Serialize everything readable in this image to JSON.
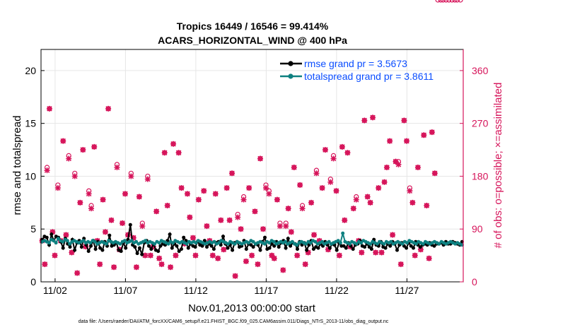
{
  "colors": {
    "rmse": "#000000",
    "spread": "#0e8080",
    "obs": "#d6145a",
    "legend_text": "#0a4dff",
    "grid": "#e6e6e6"
  },
  "chart_data": {
    "type": "line",
    "title_line1": "Tropics 16449 / 16546 = 99.414%",
    "title_line2": "ACARS_HORIZONTAL_WIND @ 400 hPa",
    "xlabel": "Nov.01,2013 00:00:00 start",
    "ylabel_left": "rmse and totalspread",
    "ylabel_right": "# of obs: o=possible; ×=assimilated",
    "footnote": "data file: /Users/raeder/DAI/ATM_forcXX/CAM6_setup/f.e21.FHIST_BGC.f09_025.CAM6assim.011/Diags_NTrS_2013-11/obs_diag_output.nc",
    "xlim": [
      0.5,
      30.5
    ],
    "x_ticks": [
      1.5,
      6.5,
      11.5,
      16.5,
      21.5,
      26.5
    ],
    "x_tick_labels": [
      "11/02",
      "11/07",
      "11/12",
      "11/17",
      "11/22",
      "11/27"
    ],
    "ylim_left": [
      0,
      22
    ],
    "y_ticks_left": [
      0,
      5,
      10,
      15,
      20
    ],
    "ylim_right": [
      0,
      396
    ],
    "y_ticks_right": [
      0,
      90,
      180,
      270,
      360
    ],
    "legend": [
      {
        "name": "rmse grand pr = 3.5673",
        "series": "rmse"
      },
      {
        "name": "totalspread grand pr = 3.8611",
        "series": "spread"
      }
    ],
    "series": [
      {
        "name": "rmse",
        "values": [
          4.0,
          4.3,
          4.2,
          3.5,
          4.5,
          3.9,
          4.3,
          4.2,
          3.8,
          3.2,
          4.1,
          3.6,
          3.3,
          4.0,
          3.0,
          3.7,
          3.9,
          3.3,
          4.1,
          3.5,
          2.9,
          3.4,
          3.9,
          3.1,
          3.8,
          3.2,
          3.0,
          3.8,
          3.4,
          4.4,
          3.4,
          3.5,
          3.7,
          3.0,
          2.9,
          3.7,
          3.2,
          4.0,
          5.4,
          3.5,
          3.3,
          2.7,
          3.2,
          2.6,
          3.7,
          3.9,
          3.4,
          3.1,
          3.6,
          3.0,
          2.9,
          3.4,
          3.6,
          3.5,
          3.9,
          4.5,
          3.2,
          3.6,
          3.4,
          2.9,
          3.1,
          4.2,
          3.9,
          3.2,
          3.6,
          3.4,
          3.3,
          3.8,
          3.5,
          3.4,
          3.9,
          3.3,
          3.6,
          3.4,
          3.1,
          3.7,
          3.8,
          3.5,
          4.3,
          3.6,
          3.2,
          3.5,
          3.0,
          3.7,
          3.8,
          3.3,
          3.4,
          3.9,
          3.1,
          3.6,
          3.5,
          3.3,
          3.6,
          3.5,
          3.0,
          3.8,
          4.2,
          3.1,
          3.2,
          3.6,
          3.4,
          3.8,
          3.3,
          3.7,
          3.9,
          3.2,
          4.1,
          3.4,
          3.7,
          3.6,
          3.1,
          3.8,
          3.5,
          3.7,
          3.0,
          3.5,
          3.9,
          3.1,
          3.3,
          3.2,
          3.6,
          3.4,
          3.8,
          3.5,
          3.2,
          3.6,
          3.5,
          3.0,
          3.7,
          3.4,
          3.4,
          3.2,
          3.7,
          3.4,
          3.1,
          3.5,
          3.6,
          3.9,
          3.4,
          3.3,
          3.6,
          3.3,
          3.1,
          4.0,
          3.5,
          3.4,
          3.8,
          3.3,
          3.2,
          3.6,
          3.4,
          3.8,
          3.6,
          3.0,
          3.5,
          3.7,
          3.4,
          3.2,
          3.7,
          3.4,
          3.2,
          3.8,
          3.5,
          3.3,
          3.5,
          3.6,
          3.5,
          3.7,
          3.5,
          3.4,
          3.6,
          3.6,
          3.7,
          3.5,
          3.8,
          3.6,
          3.6,
          3.8,
          3.7,
          3.6,
          3.5,
          3.8
        ],
        "color_key": "rmse"
      },
      {
        "name": "totalspread",
        "values": [
          3.8,
          3.9,
          3.8,
          3.7,
          4.0,
          3.9,
          3.7,
          4.1,
          3.9,
          3.8,
          4.0,
          3.9,
          3.6,
          3.8,
          3.9,
          3.8,
          3.7,
          3.8,
          3.9,
          3.7,
          3.8,
          3.7,
          3.9,
          3.8,
          3.6,
          3.7,
          3.8,
          3.7,
          3.6,
          3.9,
          3.8,
          3.7,
          3.8,
          3.7,
          3.6,
          3.8,
          3.9,
          3.7,
          3.8,
          3.9,
          3.7,
          3.8,
          3.6,
          3.7,
          3.8,
          3.9,
          3.7,
          3.8,
          3.7,
          3.6,
          3.8,
          3.7,
          3.9,
          3.8,
          3.7,
          3.6,
          3.8,
          3.7,
          3.9,
          3.8,
          3.7,
          3.8,
          3.7,
          3.6,
          3.8,
          3.7,
          3.8,
          3.7,
          3.9,
          3.8,
          3.7,
          3.6,
          3.7,
          3.8,
          3.7,
          3.8,
          3.6,
          3.7,
          3.9,
          3.8,
          3.7,
          3.6,
          3.8,
          3.7,
          3.6,
          3.8,
          3.7,
          3.6,
          3.7,
          3.8,
          3.7,
          3.9,
          3.8,
          3.6,
          3.7,
          3.8,
          3.7,
          3.6,
          3.8,
          3.7,
          3.9,
          3.8,
          3.6,
          3.7,
          3.8,
          3.7,
          3.8,
          3.6,
          3.7,
          3.8,
          3.6,
          3.5,
          3.7,
          3.8,
          3.7,
          3.6,
          3.8,
          3.7,
          3.9,
          3.8,
          3.6,
          3.7,
          3.8,
          3.6,
          3.7,
          3.8,
          3.6,
          3.7,
          3.8,
          3.9,
          3.7,
          4.6,
          3.8,
          3.7,
          3.6,
          3.8,
          3.7,
          3.6,
          3.8,
          3.7,
          3.9,
          3.8,
          3.7,
          3.6,
          3.8,
          3.7,
          3.6,
          3.8,
          3.7,
          3.6,
          3.8,
          3.7,
          3.8,
          3.6,
          3.7,
          3.8,
          3.7,
          3.6,
          3.8,
          3.7,
          3.9,
          3.8,
          3.7,
          3.6,
          3.8,
          3.7,
          3.6,
          3.8,
          3.7,
          3.6,
          3.7,
          3.8,
          3.7,
          3.6,
          3.8,
          3.7,
          3.6,
          3.7,
          3.8,
          3.7,
          3.6,
          3.7,
          3.6,
          3.5
        ],
        "color_key": "spread"
      }
    ],
    "obs_x": [
      0.58,
      0.77,
      0.93,
      1.1,
      1.32,
      1.48,
      1.7,
      1.9,
      2.07,
      2.28,
      2.47,
      2.68,
      2.9,
      3.07,
      3.28,
      3.48,
      3.68,
      3.9,
      4.07,
      4.28,
      4.5,
      4.68,
      4.9,
      5.07,
      5.28,
      5.5,
      5.68,
      5.9,
      6.07,
      6.28,
      6.48,
      6.68,
      6.9,
      7.07,
      7.28,
      7.48,
      7.7,
      7.9,
      8.08,
      8.28,
      8.48,
      8.7,
      8.9,
      9.07,
      9.28,
      9.48,
      9.7,
      9.9,
      10.07,
      10.28,
      10.48,
      10.7,
      10.9,
      11.07,
      11.3,
      11.48,
      11.7,
      11.9,
      12.07,
      12.28,
      12.48,
      12.7,
      12.9,
      13.07,
      13.28,
      13.48,
      13.7,
      13.9,
      14.07,
      14.3,
      14.48,
      14.7,
      14.9,
      15.07,
      15.28,
      15.48,
      15.7,
      15.9,
      16.08,
      16.28,
      16.48,
      16.7,
      16.9,
      17.07,
      17.28,
      17.48,
      17.7,
      17.9,
      18.07,
      18.28,
      18.48,
      18.7,
      18.9,
      19.07,
      19.28,
      19.48,
      19.7,
      19.9,
      20.07,
      20.28,
      20.48,
      20.7,
      20.9,
      21.07,
      21.28,
      21.48,
      21.7,
      21.9,
      22.07,
      22.28,
      22.48,
      22.7,
      22.9,
      23.07,
      23.28,
      23.48,
      23.7,
      23.9,
      24.07,
      24.28,
      24.48,
      24.7,
      24.9,
      25.07,
      25.28,
      25.48,
      25.7,
      25.9,
      26.07,
      26.3,
      26.48,
      26.7,
      26.9,
      27.07,
      27.28,
      27.48,
      27.7,
      27.9,
      28.07,
      28.28,
      28.48,
      28.7,
      28.9,
      29.07,
      29.28,
      29.48,
      29.7,
      29.9,
      30.07,
      30.3
    ],
    "obs_possible": [
      70,
      30,
      195,
      295,
      85,
      45,
      165,
      70,
      240,
      80,
      215,
      50,
      185,
      15,
      135,
      225,
      60,
      155,
      130,
      230,
      70,
      30,
      140,
      85,
      295,
      105,
      25,
      200,
      55,
      100,
      150,
      80,
      185,
      75,
      25,
      145,
      100,
      45,
      180,
      45,
      60,
      120,
      40,
      30,
      220,
      130,
      25,
      235,
      45,
      220,
      160,
      65,
      150,
      110,
      75,
      45,
      140,
      65,
      155,
      95,
      70,
      45,
      150,
      40,
      105,
      55,
      160,
      105,
      185,
      10,
      115,
      90,
      145,
      35,
      160,
      45,
      120,
      30,
      210,
      90,
      165,
      155,
      45,
      40,
      140,
      100,
      20,
      100,
      125,
      85,
      195,
      45,
      165,
      130,
      30,
      50,
      135,
      80,
      190,
      70,
      160,
      225,
      55,
      175,
      215,
      155,
      45,
      230,
      105,
      220,
      60,
      125,
      145,
      70,
      50,
      275,
      145,
      135,
      280,
      50,
      160,
      50,
      170,
      195,
      240,
      80,
      205,
      205,
      30,
      275,
      240,
      160,
      135,
      45,
      195,
      55,
      250,
      130,
      40,
      255,
      185
    ],
    "obs_assimilated": [
      70,
      30,
      190,
      295,
      85,
      45,
      160,
      70,
      240,
      80,
      210,
      50,
      180,
      15,
      135,
      225,
      60,
      150,
      125,
      230,
      70,
      30,
      140,
      85,
      295,
      105,
      25,
      195,
      55,
      100,
      150,
      80,
      180,
      75,
      25,
      145,
      95,
      45,
      175,
      45,
      60,
      120,
      40,
      30,
      220,
      130,
      25,
      235,
      45,
      220,
      160,
      65,
      150,
      110,
      75,
      45,
      140,
      65,
      155,
      95,
      70,
      45,
      150,
      40,
      105,
      55,
      160,
      105,
      185,
      10,
      110,
      90,
      140,
      35,
      160,
      45,
      120,
      30,
      210,
      90,
      160,
      150,
      45,
      40,
      140,
      95,
      20,
      95,
      125,
      85,
      195,
      45,
      165,
      125,
      30,
      50,
      135,
      80,
      185,
      70,
      160,
      225,
      55,
      170,
      210,
      155,
      45,
      230,
      105,
      220,
      60,
      125,
      140,
      70,
      50,
      275,
      145,
      135,
      280,
      50,
      160,
      50,
      170,
      195,
      240,
      80,
      205,
      200,
      30,
      275,
      240,
      155,
      135,
      45,
      195,
      55,
      250,
      130,
      40,
      255,
      185
    ]
  }
}
